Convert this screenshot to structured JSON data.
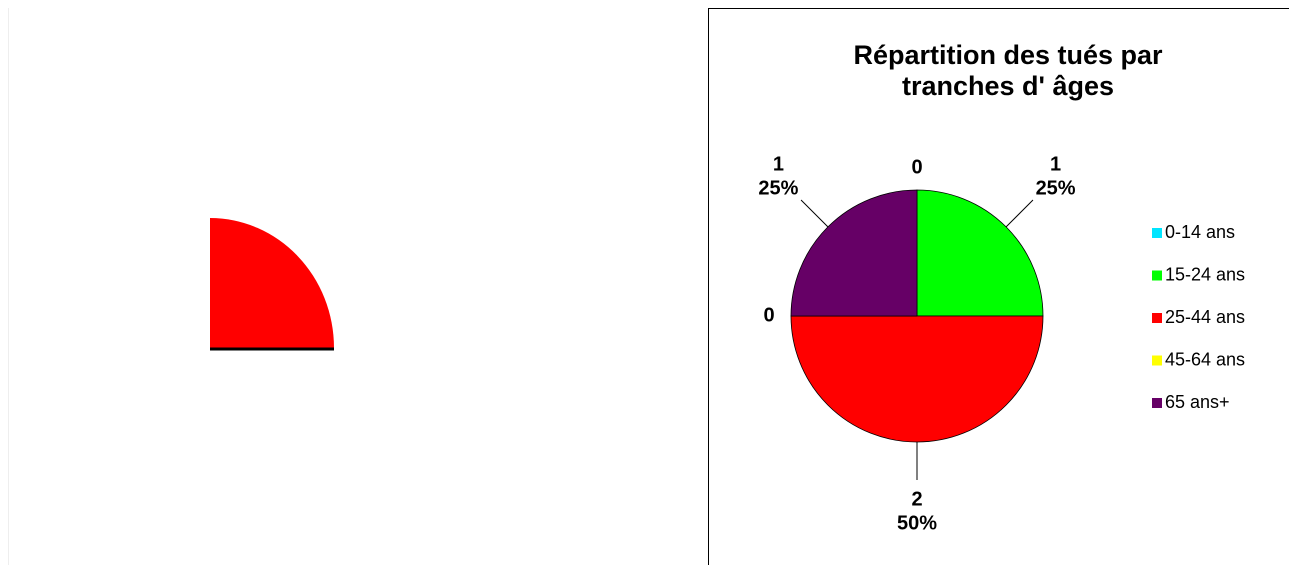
{
  "chart_data": {
    "type": "pie",
    "title": "Répartition des tués par tranches d' âges",
    "categories": [
      "0-14 ans",
      "15-24 ans",
      "25-44 ans",
      "45-64 ans",
      "65 ans+"
    ],
    "values": [
      0,
      1,
      2,
      0,
      1
    ],
    "percents": [
      null,
      25,
      50,
      null,
      25
    ],
    "percent_labels": [
      null,
      "25%",
      "50%",
      null,
      "25%"
    ],
    "colors": [
      "#00e5ff",
      "#00ff00",
      "#ff0000",
      "#ffff00",
      "#660066"
    ],
    "legend": "right"
  }
}
